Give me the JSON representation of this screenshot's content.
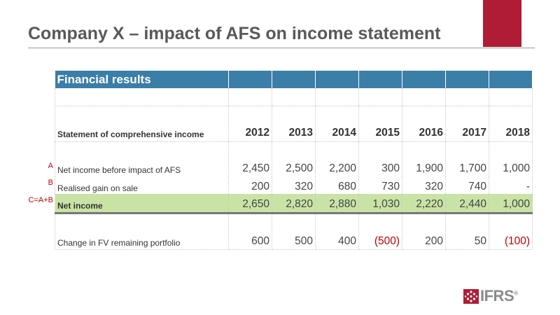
{
  "slide": {
    "title": "Company X – impact of AFS on income statement",
    "accent_color": "#b01c35"
  },
  "table": {
    "header_title": "Financial results",
    "header_color": "#3b7ea8",
    "years_label": "Statement of comprehensive income",
    "years": [
      "2012",
      "2013",
      "2014",
      "2015",
      "2016",
      "2017",
      "2018"
    ],
    "rows": [
      {
        "marker": "A",
        "label": "Net income before impact of AFS",
        "values": [
          "2,450",
          "2,500",
          "2,200",
          "300",
          "1,900",
          "1,700",
          "1,000"
        ]
      },
      {
        "marker": "B",
        "label": "Realised gain on sale",
        "values": [
          "200",
          "320",
          "680",
          "730",
          "320",
          "740",
          "-"
        ]
      },
      {
        "marker": "C=A+B",
        "label": "Net income",
        "values": [
          "2,650",
          "2,820",
          "2,880",
          "1,030",
          "2,220",
          "2,440",
          "1,000"
        ]
      },
      {
        "marker": "",
        "label": "Change in FV remaining portfolio",
        "values": [
          "600",
          "500",
          "400",
          "(500)",
          "200",
          "50",
          "(100)"
        ]
      }
    ],
    "net_income_highlight": "#c9e3a6",
    "negative_color": "#c00000"
  },
  "logo": {
    "text": "IFRS",
    "icon": "ifrs-logo-mark",
    "registered": "®"
  }
}
